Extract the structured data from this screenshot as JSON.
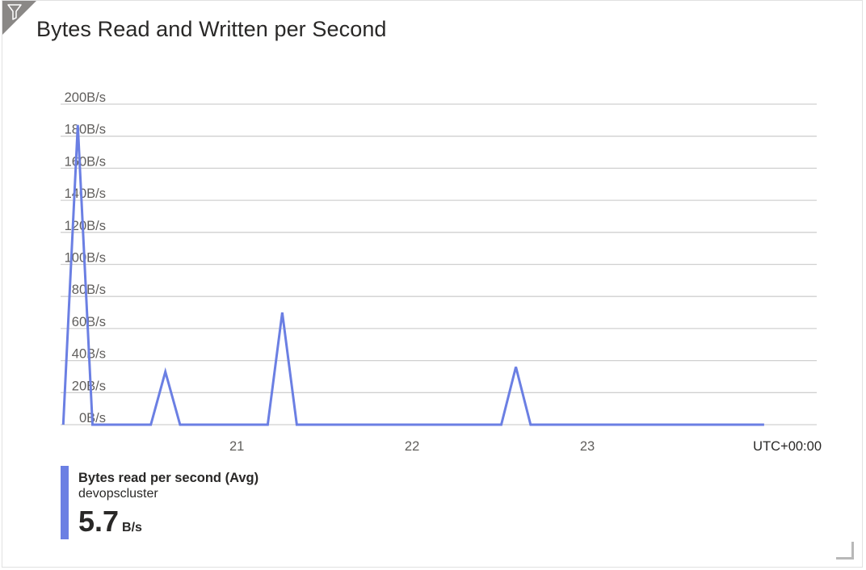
{
  "tile": {
    "title": "Bytes Read and Written per Second"
  },
  "icons": {
    "filter": "filter-icon",
    "resize": "resize-handle-icon"
  },
  "colors": {
    "series": "#6b7fe3",
    "grid": "#d0d0d0",
    "corner": "#8a8886"
  },
  "chart_data": {
    "type": "line",
    "title": "Bytes Read and Written per Second",
    "timezone_label": "UTC+00:00",
    "y_unit": "B/s",
    "ylim": [
      0,
      200
    ],
    "y_ticks": [
      0,
      20,
      40,
      60,
      80,
      100,
      120,
      140,
      160,
      180,
      200
    ],
    "y_tick_labels": [
      "0B/s",
      "20B/s",
      "40B/s",
      "60B/s",
      "80B/s",
      "100B/s",
      "120B/s",
      "140B/s",
      "160B/s",
      "180B/s",
      "200B/s"
    ],
    "x_unit": "hour",
    "xlim": [
      19.985,
      24.3
    ],
    "x_ticks": [
      21,
      22,
      23
    ],
    "x_tick_labels": [
      "21",
      "22",
      "23"
    ],
    "grid": true,
    "legend_position": "bottom-left",
    "series": [
      {
        "name": "Bytes read per second (Avg)",
        "resource": "devopscluster",
        "summary_value": "5.7",
        "summary_unit": "B/s",
        "color": "#6b7fe3",
        "x": [
          20.0,
          20.083,
          20.167,
          20.5,
          20.583,
          20.667,
          21.167,
          21.25,
          21.333,
          22.5,
          22.583,
          22.667,
          24.0
        ],
        "y": [
          0,
          187,
          0,
          0,
          33,
          0,
          0,
          70,
          0,
          0,
          36,
          0,
          0
        ]
      }
    ]
  }
}
